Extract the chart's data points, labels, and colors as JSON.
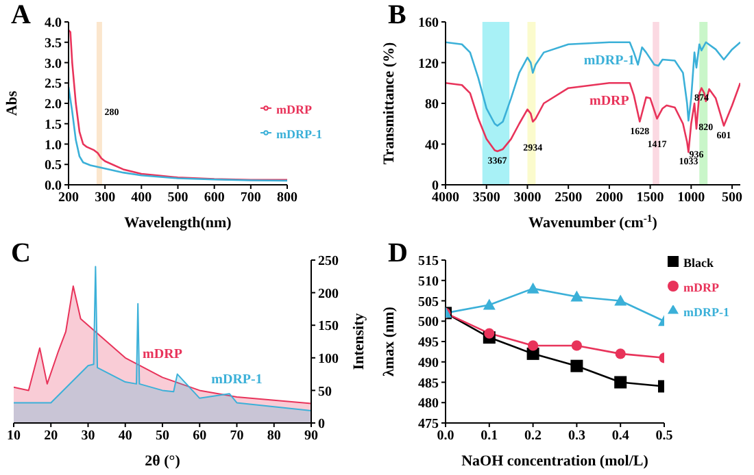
{
  "chart_data": [
    {
      "type": "line",
      "title": "A",
      "xlabel": "Wavelength(nm)",
      "ylabel": "Abs",
      "xlim": [
        200,
        800
      ],
      "xticks": [
        200,
        300,
        400,
        500,
        600,
        700,
        800
      ],
      "ylim": [
        0,
        4
      ],
      "yticks": [
        {
          "value": 0,
          "label": "0.0"
        },
        0.5,
        {
          "value": 1,
          "label": "1.0"
        },
        1.5,
        {
          "value": 2,
          "label": "2.0"
        },
        2.5,
        {
          "value": 3,
          "label": "3.0"
        },
        3.5,
        {
          "value": 4,
          "label": "4.0"
        }
      ],
      "legend": "right",
      "bands": [
        {
          "axis": "x",
          "from": 277,
          "to": 292,
          "color": "#fbe3c8"
        }
      ],
      "annotations": [
        {
          "text": "280",
          "x": 280,
          "y": 1.8
        }
      ],
      "series": [
        {
          "name": "mDRP",
          "color": "#e8335a",
          "x": [
            200,
            205,
            210,
            220,
            230,
            240,
            250,
            270,
            280,
            290,
            300,
            350,
            400,
            500,
            600,
            700,
            800
          ],
          "values": [
            3.8,
            3.75,
            3.0,
            2.0,
            1.3,
            1.0,
            0.93,
            0.85,
            0.78,
            0.65,
            0.58,
            0.38,
            0.27,
            0.18,
            0.14,
            0.12,
            0.12
          ]
        },
        {
          "name": "mDRP-1",
          "color": "#3bb0d8",
          "x": [
            200,
            210,
            220,
            230,
            240,
            260,
            300,
            350,
            400,
            500,
            600,
            700,
            800
          ],
          "values": [
            2.4,
            1.8,
            1.1,
            0.7,
            0.55,
            0.48,
            0.4,
            0.3,
            0.23,
            0.16,
            0.13,
            0.11,
            0.1
          ]
        }
      ]
    },
    {
      "type": "line",
      "title": "B",
      "xlabel": "Wavenumber (cm$^{-1}$)",
      "ylabel": "Transmittance (%)",
      "xlim": [
        4000,
        400
      ],
      "xticks": [
        4000,
        3500,
        3000,
        2500,
        2000,
        1500,
        1000,
        500
      ],
      "ylim": [
        0,
        160
      ],
      "yticks": [
        0,
        40,
        80,
        120,
        160
      ],
      "bands": [
        {
          "axis": "x",
          "from": 3550,
          "to": 3220,
          "color": "#9ff0f5"
        },
        {
          "axis": "x",
          "from": 3000,
          "to": 2900,
          "color": "#fbfbc8"
        },
        {
          "axis": "x",
          "from": 1470,
          "to": 1390,
          "color": "#fbd5df"
        },
        {
          "axis": "x",
          "from": 900,
          "to": 800,
          "color": "#c3f5c3"
        }
      ],
      "annotations": [
        {
          "text": "3367",
          "x": 3367,
          "y": 33
        },
        {
          "text": "2934",
          "x": 2934,
          "y": 62
        },
        {
          "text": "1628",
          "x": 1628,
          "y": 62
        },
        {
          "text": "1417",
          "x": 1417,
          "y": 65
        },
        {
          "text": "1033",
          "x": 1033,
          "y": 32
        },
        {
          "text": "936",
          "x": 936,
          "y": 55
        },
        {
          "text": "874",
          "x": 874,
          "y": 95
        },
        {
          "text": "820",
          "x": 820,
          "y": 82
        },
        {
          "text": "601",
          "x": 601,
          "y": 58
        }
      ],
      "series": [
        {
          "name": "mDRP-1",
          "color": "#3bb0d8",
          "x": [
            4000,
            3800,
            3700,
            3600,
            3500,
            3400,
            3367,
            3300,
            3200,
            3100,
            3000,
            2960,
            2934,
            2900,
            2800,
            2500,
            2000,
            1750,
            1700,
            1650,
            1600,
            1550,
            1450,
            1400,
            1350,
            1200,
            1100,
            1050,
            1033,
            1000,
            960,
            936,
            900,
            874,
            820,
            700,
            601,
            500,
            400
          ],
          "values": [
            140,
            138,
            130,
            105,
            75,
            60,
            58,
            62,
            85,
            110,
            125,
            120,
            110,
            118,
            130,
            138,
            140,
            140,
            130,
            118,
            135,
            130,
            118,
            117,
            123,
            122,
            110,
            80,
            63,
            85,
            130,
            115,
            138,
            132,
            140,
            133,
            123,
            133,
            140
          ]
        },
        {
          "name": "mDRP",
          "color": "#e8335a",
          "x": [
            4000,
            3800,
            3700,
            3600,
            3500,
            3400,
            3367,
            3300,
            3200,
            3100,
            3000,
            2960,
            2934,
            2900,
            2800,
            2500,
            2000,
            1750,
            1700,
            1628,
            1550,
            1500,
            1417,
            1350,
            1300,
            1200,
            1100,
            1050,
            1033,
            1000,
            960,
            936,
            900,
            874,
            840,
            820,
            780,
            700,
            601,
            500,
            400
          ],
          "values": [
            100,
            98,
            90,
            65,
            45,
            34,
            33,
            35,
            45,
            60,
            74,
            70,
            62,
            65,
            80,
            95,
            100,
            100,
            88,
            62,
            86,
            85,
            65,
            75,
            78,
            76,
            60,
            42,
            32,
            60,
            80,
            55,
            90,
            95,
            90,
            82,
            94,
            85,
            58,
            78,
            100
          ]
        }
      ]
    },
    {
      "type": "area",
      "title": "C",
      "xlabel": "2θ (°)",
      "ylabel": "Intensity",
      "xlim": [
        10,
        90
      ],
      "xticks": [
        10,
        20,
        30,
        40,
        50,
        60,
        70,
        80,
        90
      ],
      "ylim": [
        0,
        250
      ],
      "yticks": [
        0,
        50,
        100,
        150,
        200,
        250
      ],
      "series": [
        {
          "name": "mDRP",
          "color": "#e8335a",
          "x": [
            10,
            14,
            17,
            19,
            22,
            24,
            26,
            28,
            32,
            36,
            40,
            45,
            50,
            55,
            60,
            70,
            80,
            90
          ],
          "values": [
            55,
            50,
            115,
            60,
            110,
            140,
            210,
            160,
            140,
            120,
            100,
            85,
            70,
            60,
            50,
            40,
            35,
            30
          ]
        },
        {
          "name": "mDRP-1",
          "color": "#3bb0d8",
          "x": [
            10,
            20,
            30,
            31.5,
            32,
            32.5,
            40,
            43,
            43.4,
            43.8,
            50,
            53,
            54,
            60,
            68,
            70,
            80,
            90
          ],
          "values": [
            31,
            31,
            88,
            90,
            240,
            85,
            63,
            60,
            183,
            60,
            50,
            48,
            75,
            38,
            45,
            31,
            25,
            19
          ]
        }
      ]
    },
    {
      "type": "line",
      "title": "D",
      "xlabel": "NaOH concentration (mol/L)",
      "ylabel": "λmax (nm)",
      "xlim": [
        0,
        0.5
      ],
      "xticks": [
        {
          "value": 0,
          "label": "0.0"
        },
        0.1,
        0.2,
        0.3,
        0.4,
        0.5
      ],
      "ylim": [
        475,
        515
      ],
      "yticks": [
        475,
        480,
        485,
        490,
        495,
        500,
        505,
        510,
        515
      ],
      "legend": "top right",
      "x": [
        0,
        0.1,
        0.2,
        0.3,
        0.4,
        0.5
      ],
      "series": [
        {
          "name": "Black",
          "color": "#000000",
          "marker": "square",
          "values": [
            502,
            496,
            492,
            489,
            485,
            484
          ]
        },
        {
          "name": "mDRP",
          "color": "#e8335a",
          "marker": "circle",
          "values": [
            502,
            497,
            494,
            494,
            492,
            491
          ]
        },
        {
          "name": "mDRP-1",
          "color": "#3bb0d8",
          "marker": "triangle",
          "values": [
            502,
            504,
            508,
            506,
            505,
            500
          ]
        }
      ]
    }
  ]
}
